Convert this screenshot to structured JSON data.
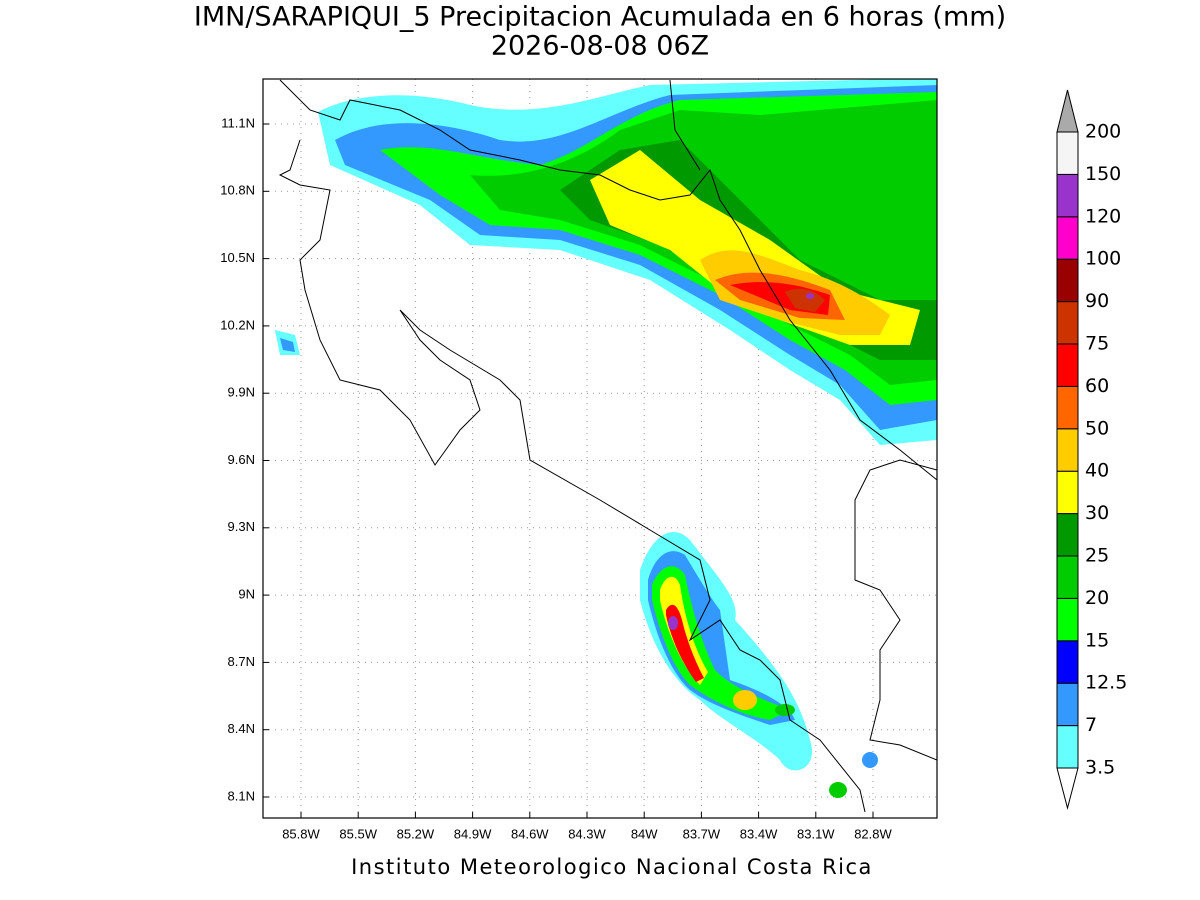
{
  "header": {
    "title": "IMN/SARAPIQUI_5 Precipitacion Acumulada en 6 horas (mm)",
    "subtitle": "2026-08-08 06Z"
  },
  "map": {
    "lon_ticks": [
      "85.8W",
      "85.5W",
      "85.2W",
      "84.9W",
      "84.6W",
      "84.3W",
      "84W",
      "83.7W",
      "83.4W",
      "83.1W",
      "82.8W"
    ],
    "lat_ticks": [
      "11.1N",
      "10.8N",
      "10.5N",
      "10.2N",
      "9.9N",
      "9.6N",
      "9.3N",
      "9N",
      "8.7N",
      "8.4N",
      "8.1N"
    ]
  },
  "colorbar": {
    "levels": [
      "3.5",
      "7",
      "12.5",
      "15",
      "20",
      "25",
      "30",
      "40",
      "50",
      "60",
      "75",
      "90",
      "100",
      "120",
      "150",
      "200"
    ],
    "colors": [
      "#ffffff",
      "#66ffff",
      "#3399ff",
      "#0000ff",
      "#00ff00",
      "#00cc00",
      "#009900",
      "#ffff00",
      "#ffcc00",
      "#ff6600",
      "#ff0000",
      "#cc3300",
      "#990000",
      "#ff00cc",
      "#9933cc",
      "#f5f5f5",
      "#aaaaaa"
    ]
  },
  "footer": {
    "credit": "Instituto Meteorologico Nacional Costa Rica"
  }
}
